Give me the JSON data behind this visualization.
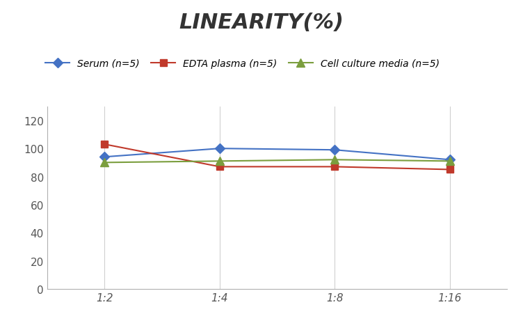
{
  "title": "LINEARITY(%)",
  "title_fontsize": 22,
  "title_fontstyle": "italic",
  "title_fontweight": "bold",
  "title_color": "#333333",
  "x_labels": [
    "1:2",
    "1:4",
    "1:8",
    "1:16"
  ],
  "x_positions": [
    0,
    1,
    2,
    3
  ],
  "series": [
    {
      "label": "Serum (n=5)",
      "color": "#4472C4",
      "marker": "D",
      "markersize": 7,
      "values": [
        94,
        100,
        99,
        92
      ]
    },
    {
      "label": "EDTA plasma (n=5)",
      "color": "#C0392B",
      "marker": "s",
      "markersize": 7,
      "values": [
        103,
        87,
        87,
        85
      ]
    },
    {
      "label": "Cell culture media (n=5)",
      "color": "#7B9E3E",
      "marker": "^",
      "markersize": 8,
      "values": [
        90,
        91,
        92,
        91
      ]
    }
  ],
  "ylim": [
    0,
    130
  ],
  "yticks": [
    0,
    20,
    40,
    60,
    80,
    100,
    120
  ],
  "grid_color": "#D0D0D0",
  "background_color": "#FFFFFF",
  "legend_fontsize": 10,
  "tick_fontsize": 11,
  "tick_color": "#555555"
}
